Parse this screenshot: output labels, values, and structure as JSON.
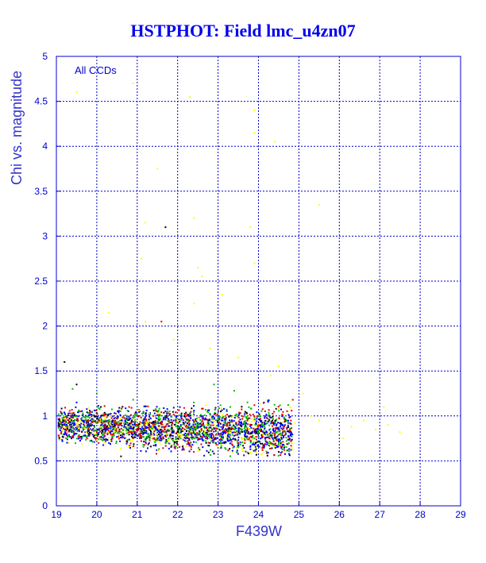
{
  "chart_data": {
    "type": "scatter",
    "title": "HSTPHOT: Field lmc_u4zn07",
    "xlabel": "F439W",
    "ylabel": "Chi vs. magnitude",
    "annotation": "All CCDs",
    "xlim": [
      19,
      29
    ],
    "ylim": [
      0,
      5
    ],
    "x_ticks": [
      "19",
      "20",
      "21",
      "22",
      "23",
      "24",
      "25",
      "26",
      "27",
      "28",
      "29"
    ],
    "y_ticks": [
      "0",
      "0.5",
      "1",
      "1.5",
      "2",
      "2.5",
      "3",
      "3.5",
      "4",
      "4.5",
      "5"
    ],
    "grid": true,
    "colors": {
      "frame": "#0000cc",
      "grid": "#0000cc",
      "title": "#0000ee",
      "red": "#e00000",
      "green": "#00c000",
      "blue": "#0000ff",
      "yellow": "#ffff00",
      "black": "#000000"
    },
    "series": [
      {
        "color": "red",
        "points": [
          [
            19.3,
            0.95
          ],
          [
            19.6,
            1.05
          ],
          [
            19.9,
            0.85
          ],
          [
            20.2,
            0.78
          ],
          [
            20.5,
            0.92
          ],
          [
            20.8,
            1.1
          ],
          [
            21.1,
            0.72
          ],
          [
            21.4,
            1.0
          ],
          [
            21.7,
            0.88
          ],
          [
            22.0,
            0.68
          ],
          [
            22.3,
            0.95
          ],
          [
            22.6,
            1.08
          ],
          [
            22.9,
            0.75
          ],
          [
            23.2,
            0.82
          ],
          [
            23.5,
            0.7
          ],
          [
            23.8,
            0.9
          ],
          [
            24.1,
            0.62
          ],
          [
            24.4,
            0.78
          ],
          [
            24.6,
            0.85
          ],
          [
            24.8,
            0.72
          ],
          [
            21.6,
            2.05
          ],
          [
            22.4,
            0.6
          ],
          [
            23.9,
            1.12
          ],
          [
            24.2,
            0.98
          ]
        ]
      },
      {
        "color": "green",
        "points": [
          [
            19.4,
            1.3
          ],
          [
            19.7,
            0.88
          ],
          [
            20.0,
            1.25
          ],
          [
            20.3,
            0.95
          ],
          [
            20.6,
            0.82
          ],
          [
            20.9,
            1.18
          ],
          [
            21.2,
            0.92
          ],
          [
            21.5,
            0.78
          ],
          [
            21.8,
            1.05
          ],
          [
            22.1,
            0.9
          ],
          [
            22.4,
            1.15
          ],
          [
            22.7,
            0.8
          ],
          [
            23.0,
            0.98
          ],
          [
            23.3,
            1.1
          ],
          [
            23.6,
            0.85
          ],
          [
            23.9,
            0.75
          ],
          [
            24.2,
            0.92
          ],
          [
            24.5,
            0.7
          ],
          [
            24.7,
            0.95
          ],
          [
            22.9,
            1.35
          ],
          [
            23.4,
            1.28
          ]
        ]
      },
      {
        "color": "yellow",
        "points": [
          [
            19.5,
            4.6
          ],
          [
            20.9,
            4.7
          ],
          [
            22.3,
            4.55
          ],
          [
            23.9,
            4.4
          ],
          [
            24.4,
            4.05
          ],
          [
            23.9,
            4.15
          ],
          [
            21.5,
            3.75
          ],
          [
            25.5,
            3.35
          ],
          [
            21.2,
            3.15
          ],
          [
            22.4,
            3.2
          ],
          [
            23.8,
            3.1
          ],
          [
            21.1,
            2.75
          ],
          [
            22.5,
            2.65
          ],
          [
            23.9,
            2.7
          ],
          [
            22.6,
            2.55
          ],
          [
            20.3,
            2.15
          ],
          [
            21.2,
            2.05
          ],
          [
            22.4,
            2.25
          ],
          [
            23.1,
            2.35
          ],
          [
            21.9,
            1.85
          ],
          [
            22.8,
            1.75
          ],
          [
            24.5,
            1.55
          ],
          [
            25.1,
            1.25
          ],
          [
            25.5,
            0.95
          ],
          [
            25.8,
            0.85
          ],
          [
            26.1,
            0.75
          ],
          [
            26.6,
            0.95
          ],
          [
            26.9,
            0.85
          ],
          [
            27.2,
            0.9
          ],
          [
            27.5,
            0.82
          ],
          [
            27.1,
            1.1
          ],
          [
            24.9,
            0.92
          ],
          [
            25.3,
            1.0
          ],
          [
            26.3,
            0.88
          ],
          [
            24.3,
            1.45
          ],
          [
            23.5,
            1.65
          ]
        ]
      },
      {
        "color": "blue",
        "points": [
          [
            19.5,
            1.15
          ],
          [
            19.8,
            0.9
          ],
          [
            20.1,
            1.0
          ],
          [
            20.4,
            0.85
          ],
          [
            20.7,
            0.95
          ],
          [
            21.0,
            0.78
          ],
          [
            21.3,
            0.9
          ],
          [
            21.6,
            0.82
          ],
          [
            21.9,
            0.95
          ],
          [
            22.2,
            0.75
          ],
          [
            22.5,
            0.88
          ],
          [
            22.8,
            0.7
          ],
          [
            23.1,
            0.85
          ],
          [
            23.4,
            0.78
          ],
          [
            23.7,
            0.92
          ],
          [
            24.0,
            0.72
          ],
          [
            24.3,
            0.82
          ],
          [
            24.6,
            0.68
          ],
          [
            24.8,
            0.78
          ],
          [
            20.3,
            0.7
          ],
          [
            21.7,
            1.05
          ],
          [
            23.0,
            1.0
          ],
          [
            24.1,
            0.88
          ]
        ]
      },
      {
        "color": "black",
        "points": [
          [
            19.2,
            1.6
          ],
          [
            19.5,
            1.35
          ],
          [
            19.8,
            0.8
          ],
          [
            20.1,
            1.1
          ],
          [
            20.6,
            0.55
          ],
          [
            21.7,
            3.1
          ],
          [
            22.9,
            0.58
          ],
          [
            24.5,
            0.6
          ],
          [
            20.4,
            0.95
          ]
        ]
      }
    ]
  }
}
